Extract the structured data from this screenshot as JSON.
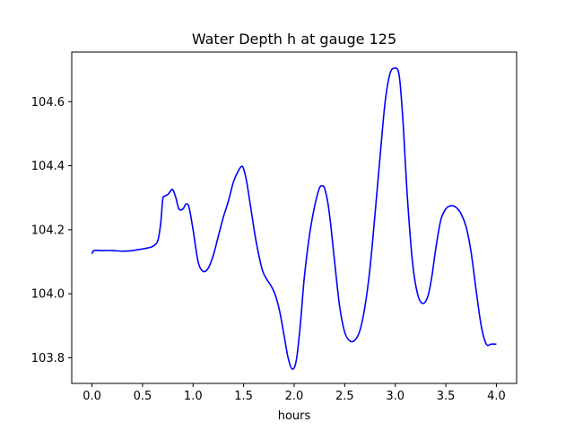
{
  "chart_data": {
    "type": "line",
    "title": "Water Depth h at gauge 125",
    "xlabel": "hours",
    "ylabel": "",
    "xlim": [
      -0.2,
      4.2
    ],
    "ylim": [
      103.72,
      104.755
    ],
    "grid": false,
    "legend": "none",
    "xticks": [
      0.0,
      0.5,
      1.0,
      1.5,
      2.0,
      2.5,
      3.0,
      3.5,
      4.0
    ],
    "xtick_labels": [
      "0.0",
      "0.5",
      "1.0",
      "1.5",
      "2.0",
      "2.5",
      "3.0",
      "3.5",
      "4.0"
    ],
    "yticks": [
      103.8,
      104.0,
      104.2,
      104.4,
      104.6
    ],
    "ytick_labels": [
      "103.8",
      "104.0",
      "104.2",
      "104.4",
      "104.6"
    ],
    "series": [
      {
        "name": "",
        "color": "#0000ff",
        "x": [
          0.0,
          0.02,
          0.1,
          0.2,
          0.3,
          0.4,
          0.5,
          0.55,
          0.6,
          0.65,
          0.68,
          0.7,
          0.72,
          0.75,
          0.78,
          0.8,
          0.83,
          0.86,
          0.9,
          0.93,
          0.96,
          1.0,
          1.05,
          1.1,
          1.15,
          1.2,
          1.25,
          1.3,
          1.35,
          1.4,
          1.45,
          1.48,
          1.5,
          1.53,
          1.57,
          1.62,
          1.68,
          1.72,
          1.78,
          1.82,
          1.86,
          1.9,
          1.94,
          1.98,
          2.02,
          2.06,
          2.1,
          2.15,
          2.2,
          2.25,
          2.28,
          2.3,
          2.33,
          2.36,
          2.4,
          2.45,
          2.5,
          2.55,
          2.6,
          2.65,
          2.7,
          2.75,
          2.8,
          2.85,
          2.9,
          2.95,
          3.0,
          3.03,
          3.05,
          3.08,
          3.12,
          3.17,
          3.22,
          3.27,
          3.32,
          3.36,
          3.4,
          3.45,
          3.5,
          3.55,
          3.6,
          3.65,
          3.7,
          3.75,
          3.8,
          3.85,
          3.9,
          3.95,
          4.0
        ],
        "y": [
          104.125,
          104.135,
          104.135,
          104.135,
          104.133,
          104.135,
          104.14,
          104.143,
          104.148,
          104.165,
          104.22,
          104.295,
          104.305,
          104.31,
          104.322,
          104.325,
          104.3,
          104.265,
          104.265,
          104.28,
          104.27,
          104.2,
          104.1,
          104.07,
          104.08,
          104.12,
          104.18,
          104.24,
          104.29,
          104.35,
          104.385,
          104.398,
          104.39,
          104.35,
          104.27,
          104.17,
          104.08,
          104.05,
          104.02,
          103.99,
          103.94,
          103.87,
          103.8,
          103.765,
          103.79,
          103.9,
          104.05,
          104.18,
          104.27,
          104.33,
          104.337,
          104.33,
          104.29,
          104.22,
          104.1,
          103.96,
          103.88,
          103.853,
          103.855,
          103.885,
          103.96,
          104.08,
          104.25,
          104.43,
          104.6,
          104.69,
          104.705,
          104.695,
          104.65,
          104.52,
          104.3,
          104.1,
          104.0,
          103.97,
          103.99,
          104.05,
          104.14,
          104.23,
          104.265,
          104.275,
          104.27,
          104.25,
          104.21,
          104.13,
          104.01,
          103.9,
          103.843,
          103.843,
          103.843
        ]
      }
    ]
  }
}
